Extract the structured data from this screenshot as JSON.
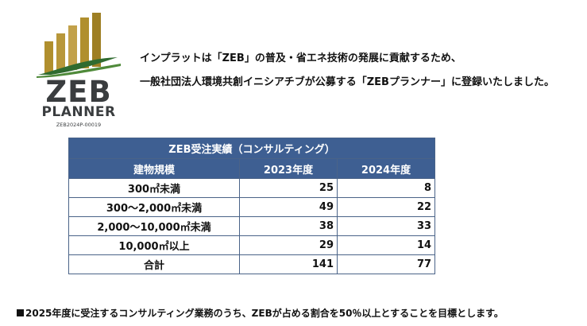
{
  "colors": {
    "table_header_bg": "#3e5f92",
    "table_border": "#4a6388",
    "logo_gold": "#b08f2e",
    "logo_green": "#2f6b2f",
    "logo_text": "#3a3d3f"
  },
  "logo": {
    "word": "ZEB",
    "sub": "PLANNER",
    "code": "ZEB2024P-00019"
  },
  "intro": {
    "line1": "インプラットは「ZEB」の普及・省エネ技術の発展に貢献するため、",
    "line2": "一般社団法人環境共創イニシアチブが公募する「ZEBプランナー」に登録いたしました。"
  },
  "table": {
    "title": "ZEB受注実績（コンサルティング）",
    "headers": [
      "建物規模",
      "2023年度",
      "2024年度"
    ],
    "rows": [
      {
        "category": "300㎡未満",
        "y2023": "25",
        "y2024": "8"
      },
      {
        "category": "300～2,000㎡未満",
        "y2023": "49",
        "y2024": "22"
      },
      {
        "category": "2,000～10,000㎡未満",
        "y2023": "38",
        "y2024": "33"
      },
      {
        "category": "10,000㎡以上",
        "y2023": "29",
        "y2024": "14"
      },
      {
        "category": "合計",
        "y2023": "141",
        "y2024": "77"
      }
    ]
  },
  "note": {
    "marker": "■",
    "text": "2025年度に受注するコンサルティング業務のうち、ZEBが占める割合を50％以上とすることを目標とします。"
  }
}
